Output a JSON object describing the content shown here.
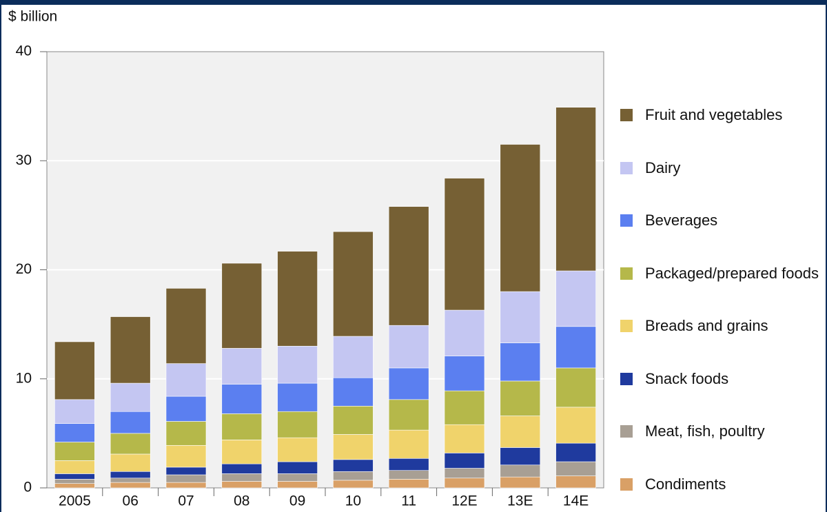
{
  "chart_data": {
    "type": "stacked_bar",
    "y_label": "$ billion",
    "categories": [
      "2005",
      "06",
      "07",
      "08",
      "09",
      "10",
      "11",
      "12E",
      "13E",
      "14E"
    ],
    "series": [
      {
        "name": "Condiments",
        "color": "#d9a066",
        "values": [
          0.4,
          0.5,
          0.5,
          0.6,
          0.6,
          0.7,
          0.8,
          0.9,
          1.0,
          1.1
        ]
      },
      {
        "name": "Meat, fish, poultry",
        "color": "#a89f94",
        "values": [
          0.4,
          0.4,
          0.7,
          0.7,
          0.7,
          0.8,
          0.8,
          0.9,
          1.1,
          1.3
        ]
      },
      {
        "name": "Snack foods",
        "color": "#1f3a9e",
        "values": [
          0.5,
          0.6,
          0.7,
          0.9,
          1.1,
          1.1,
          1.1,
          1.4,
          1.6,
          1.7
        ]
      },
      {
        "name": "Breads and grains",
        "color": "#f0d36b",
        "values": [
          1.2,
          1.6,
          2.0,
          2.2,
          2.2,
          2.3,
          2.6,
          2.6,
          2.9,
          3.3
        ]
      },
      {
        "name": "Packaged/prepared foods",
        "color": "#b5b84a",
        "values": [
          1.7,
          1.9,
          2.2,
          2.4,
          2.4,
          2.6,
          2.8,
          3.1,
          3.2,
          3.6
        ]
      },
      {
        "name": "Beverages",
        "color": "#5b7ff0",
        "values": [
          1.7,
          2.0,
          2.3,
          2.7,
          2.6,
          2.6,
          2.9,
          3.2,
          3.5,
          3.8
        ]
      },
      {
        "name": "Dairy",
        "color": "#c4c6f2",
        "values": [
          2.2,
          2.6,
          3.0,
          3.3,
          3.4,
          3.8,
          3.9,
          4.2,
          4.7,
          5.1
        ]
      },
      {
        "name": "Fruit and vegetables",
        "color": "#766034",
        "values": [
          5.3,
          6.1,
          6.9,
          7.8,
          8.7,
          9.6,
          10.9,
          12.1,
          13.5,
          15.0
        ]
      }
    ],
    "ylim": [
      0,
      40
    ],
    "yticks": [
      0,
      10,
      20,
      30,
      40
    ],
    "grid": true
  }
}
